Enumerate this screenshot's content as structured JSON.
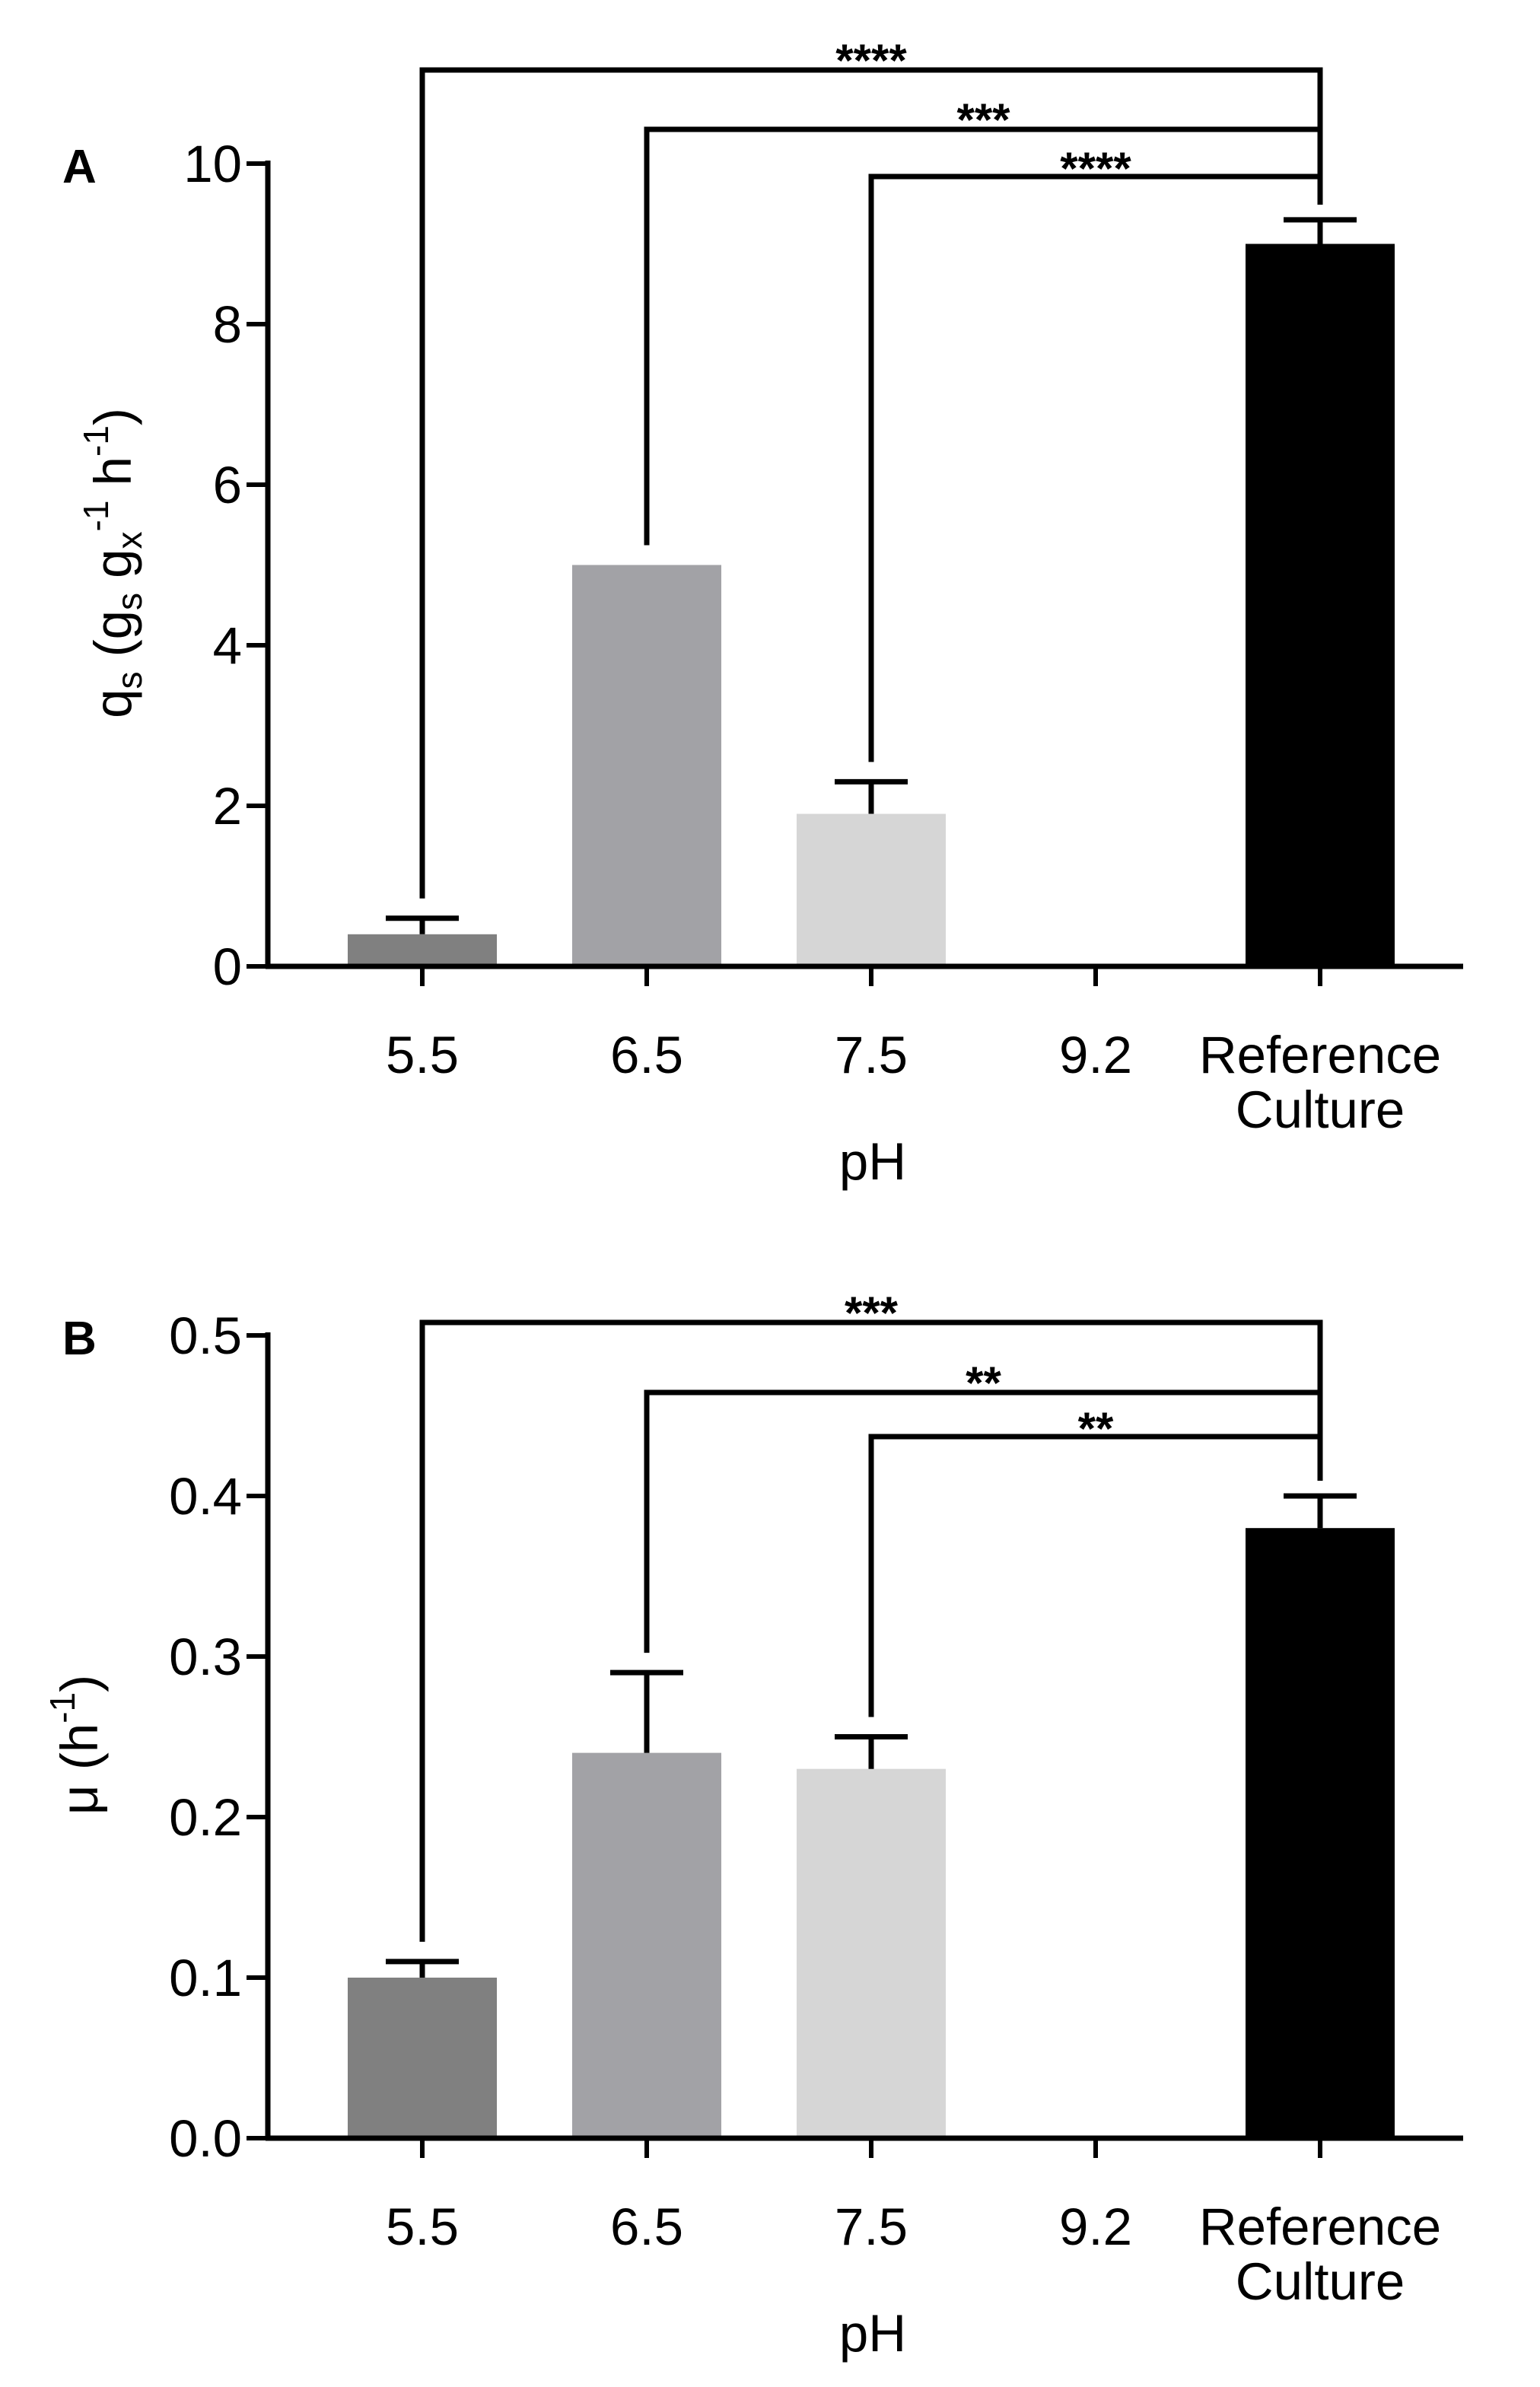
{
  "chart_data": [
    {
      "type": "bar",
      "panel": "A",
      "categories": [
        "5.5",
        "6.5",
        "7.5",
        "9.2",
        "Reference Culture"
      ],
      "x_tick_lines": [
        [
          "5.5"
        ],
        [
          "6.5"
        ],
        [
          "7.5"
        ],
        [
          "9.2"
        ],
        [
          "Reference",
          "Culture"
        ]
      ],
      "values": [
        0.4,
        5.0,
        1.9,
        0,
        9.0
      ],
      "errors": [
        0.2,
        0,
        0.4,
        0,
        0.3
      ],
      "colors": [
        "#808080",
        "#a2a2a6",
        "#d6d6d6",
        "#ffffff",
        "#000000"
      ],
      "xlabel": "pH",
      "ylabel": {
        "base": "q",
        "base_sub": "s",
        "rest_open": " (g",
        "g1_sub": "s",
        "mid": " g",
        "g2_sub": "x",
        "exp1": "-1",
        "h": " h",
        "exp2": "-1",
        "close": ")"
      },
      "ylim": [
        0,
        10
      ],
      "yticks": [
        0,
        2,
        4,
        6,
        8,
        10
      ],
      "ytick_labels": [
        "0",
        "2",
        "4",
        "6",
        "8",
        "10"
      ],
      "comparisons": [
        {
          "from": "5.5",
          "to": "Reference Culture",
          "label": "****"
        },
        {
          "from": "6.5",
          "to": "Reference Culture",
          "label": "***"
        },
        {
          "from": "7.5",
          "to": "Reference Culture",
          "label": "****"
        }
      ]
    },
    {
      "type": "bar",
      "panel": "B",
      "categories": [
        "5.5",
        "6.5",
        "7.5",
        "9.2",
        "Reference Culture"
      ],
      "x_tick_lines": [
        [
          "5.5"
        ],
        [
          "6.5"
        ],
        [
          "7.5"
        ],
        [
          "9.2"
        ],
        [
          "Reference",
          "Culture"
        ]
      ],
      "values": [
        0.1,
        0.24,
        0.23,
        0,
        0.38
      ],
      "errors": [
        0.01,
        0.05,
        0.02,
        0,
        0.02
      ],
      "colors": [
        "#808080",
        "#a2a2a6",
        "#d6d6d6",
        "#ffffff",
        "#000000"
      ],
      "xlabel": "pH",
      "ylabel": {
        "mu": "μ",
        "rest_open": " (h",
        "exp": "-1",
        "close": ")"
      },
      "ylim": [
        0,
        0.5
      ],
      "yticks": [
        0,
        0.1,
        0.2,
        0.3,
        0.4,
        0.5
      ],
      "ytick_labels": [
        "0.0",
        "0.1",
        "0.2",
        "0.3",
        "0.4",
        "0.5"
      ],
      "comparisons": [
        {
          "from": "5.5",
          "to": "Reference Culture",
          "label": "***"
        },
        {
          "from": "6.5",
          "to": "Reference Culture",
          "label": "**"
        },
        {
          "from": "7.5",
          "to": "Reference Culture",
          "label": "**"
        }
      ]
    }
  ]
}
